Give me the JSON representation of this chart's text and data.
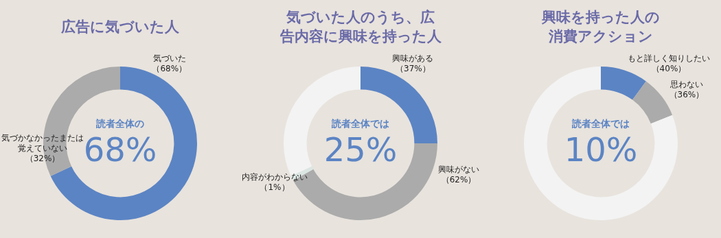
{
  "chart_data": [
    {
      "type": "donut",
      "title": "広告に気づいた人",
      "categories": [
        "気づいた（68%）",
        "気づかなかったまたは覚えていない（32%）"
      ],
      "values": [
        68,
        32
      ],
      "colors": [
        "#5b84c4",
        "#ababab"
      ],
      "annotations": [
        "読者全体の",
        "68%"
      ]
    },
    {
      "type": "donut",
      "title": "気づいた人のうち、広告内容に興味を持った人",
      "categories": [
        "興味がある（37%）",
        "興味がない（62%）",
        "内容がわからない（1%）",
        null
      ],
      "values": [
        25,
        42,
        1,
        32
      ],
      "colors": [
        "#5b84c4",
        "#ababab",
        "#dbe6e2",
        "#f3f3f3"
      ],
      "annotations": [
        "読者全体では",
        "25%"
      ]
    },
    {
      "type": "donut",
      "title": "興味を持った人の消費アクション",
      "categories": [
        "もと詳しく知りしたい（40%）",
        "思わない（36%）",
        null
      ],
      "values": [
        10,
        9,
        81
      ],
      "colors": [
        "#5b84c4",
        "#ababab",
        "#f3f3f3"
      ],
      "annotations": [
        "読者全体では",
        "10%"
      ]
    }
  ]
}
